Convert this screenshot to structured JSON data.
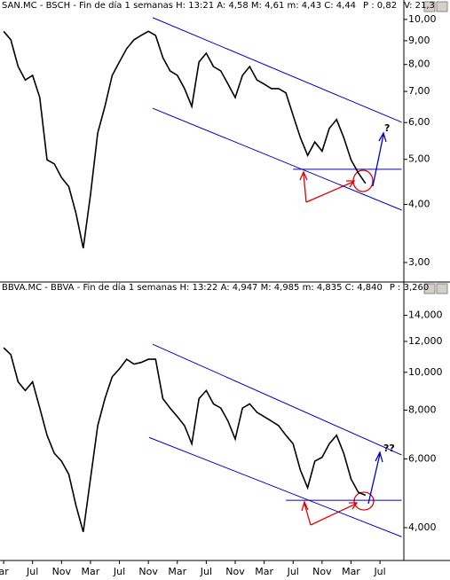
{
  "chart_data": [
    {
      "type": "line",
      "title": "SAN.MC - BSCH - Fin de día 1 semanas  H: 13:21  A: 4,58  M: 4,61  m: 4,43  C: 4,44",
      "change": "P : 0,82",
      "volume": "V: 21,3",
      "log": true,
      "color": "#000000",
      "trend_color": "#0000cc",
      "annotation": "?",
      "x": [
        0,
        1,
        2,
        3,
        4,
        5,
        6,
        7,
        8,
        9,
        10,
        11,
        12,
        13,
        14,
        15,
        16,
        17,
        18,
        19,
        20,
        21,
        22,
        23,
        24,
        25,
        26,
        27,
        28,
        29,
        30,
        31,
        32,
        33,
        34,
        35,
        36,
        37,
        38,
        39,
        40,
        41,
        42,
        43,
        44,
        45,
        46,
        47,
        48,
        49,
        50
      ],
      "values": [
        9.43,
        9.04,
        7.92,
        7.41,
        7.58,
        6.79,
        4.99,
        4.89,
        4.57,
        4.37,
        3.83,
        3.22,
        4.19,
        5.7,
        6.5,
        7.58,
        8.1,
        8.65,
        9.04,
        9.24,
        9.43,
        9.24,
        8.28,
        7.75,
        7.58,
        7.1,
        6.5,
        8.1,
        8.46,
        7.92,
        7.75,
        7.26,
        6.79,
        7.58,
        7.92,
        7.41,
        7.26,
        7.1,
        7.1,
        6.95,
        6.22,
        5.57,
        5.1,
        5.45,
        5.21,
        5.83,
        6.09,
        5.57,
        4.99,
        4.68,
        4.44
      ],
      "xlim": [
        -0.5,
        55.3
      ],
      "ylim": [
        2.76,
        10.63
      ],
      "yticks": [
        {
          "value": 3,
          "label": "3,00"
        },
        {
          "value": 4,
          "label": "4,00"
        },
        {
          "value": 5,
          "label": "5,00"
        },
        {
          "value": 6,
          "label": "6,00"
        },
        {
          "value": 7,
          "label": "7,00"
        },
        {
          "value": 8,
          "label": "8,00"
        },
        {
          "value": 9,
          "label": "9,00"
        },
        {
          "value": 10,
          "label": "10,00"
        }
      ],
      "lines": [
        {
          "x": [
            20.6,
            55
          ],
          "y": [
            10.09,
            6.01
          ]
        },
        {
          "x": [
            20.6,
            55
          ],
          "y": [
            6.44,
            3.89
          ]
        },
        {
          "x": [
            40,
            55
          ],
          "y": [
            4.76,
            4.76
          ]
        }
      ]
    },
    {
      "type": "line",
      "title": "BBVA.MC - BBVA - Fin de día 1 semanas  H: 13:22  A: 4,947  M: 4,985  m: 4,835  C: 4,840",
      "change": "P : 3,260",
      "log": true,
      "color": "#000000",
      "trend_color": "#0000cc",
      "annotation": "??",
      "x": [
        0,
        1,
        2,
        3,
        4,
        5,
        6,
        7,
        8,
        9,
        10,
        11,
        12,
        13,
        14,
        15,
        16,
        17,
        18,
        19,
        20,
        21,
        22,
        23,
        24,
        25,
        26,
        27,
        28,
        29,
        30,
        31,
        32,
        33,
        34,
        35,
        36,
        37,
        38,
        39,
        40,
        41,
        42,
        43,
        44,
        45,
        46,
        47,
        48,
        49,
        50
      ],
      "values": [
        11.56,
        11.1,
        9.45,
        8.98,
        9.45,
        8.1,
        6.9,
        6.2,
        5.92,
        5.48,
        4.56,
        3.9,
        5.33,
        7.3,
        8.56,
        9.74,
        10.2,
        10.8,
        10.5,
        10.6,
        10.8,
        10.8,
        8.56,
        8.1,
        7.7,
        7.3,
        6.56,
        8.56,
        8.98,
        8.3,
        8.1,
        7.5,
        6.75,
        8.1,
        8.3,
        7.9,
        7.7,
        7.5,
        7.3,
        6.9,
        6.56,
        5.62,
        5.06,
        5.92,
        6.06,
        6.56,
        6.9,
        6.2,
        5.33,
        4.93,
        4.84
      ],
      "xlim": [
        -0.5,
        55.3
      ],
      "ylim": [
        3.33,
        16.0
      ],
      "yticks": [
        {
          "value": 4,
          "label": "4,000"
        },
        {
          "value": 6,
          "label": "6,000"
        },
        {
          "value": 8,
          "label": "8,000"
        },
        {
          "value": 10,
          "label": "10,000"
        },
        {
          "value": 12,
          "label": "12,000"
        },
        {
          "value": 14,
          "label": "14,000"
        }
      ],
      "xticks": [
        {
          "value": 0,
          "label": "ar"
        },
        {
          "value": 4,
          "label": "Jul"
        },
        {
          "value": 8,
          "label": "Nov"
        },
        {
          "value": 12,
          "label": "Mar"
        },
        {
          "value": 16,
          "label": "Jul"
        },
        {
          "value": 20,
          "label": "Nov"
        },
        {
          "value": 24,
          "label": "Mar"
        },
        {
          "value": 28,
          "label": "Jul"
        },
        {
          "value": 32,
          "label": "Nov"
        },
        {
          "value": 36,
          "label": "Mar"
        },
        {
          "value": 40,
          "label": "Jul"
        },
        {
          "value": 44,
          "label": "Nov"
        },
        {
          "value": 48,
          "label": "Mar"
        },
        {
          "value": 52,
          "label": "Jul"
        }
      ],
      "lines": [
        {
          "x": [
            20.6,
            55
          ],
          "y": [
            11.8,
            6.14
          ]
        },
        {
          "x": [
            20.1,
            55
          ],
          "y": [
            6.81,
            3.79
          ]
        },
        {
          "x": [
            39,
            55
          ],
          "y": [
            4.7,
            4.7
          ]
        }
      ]
    }
  ]
}
